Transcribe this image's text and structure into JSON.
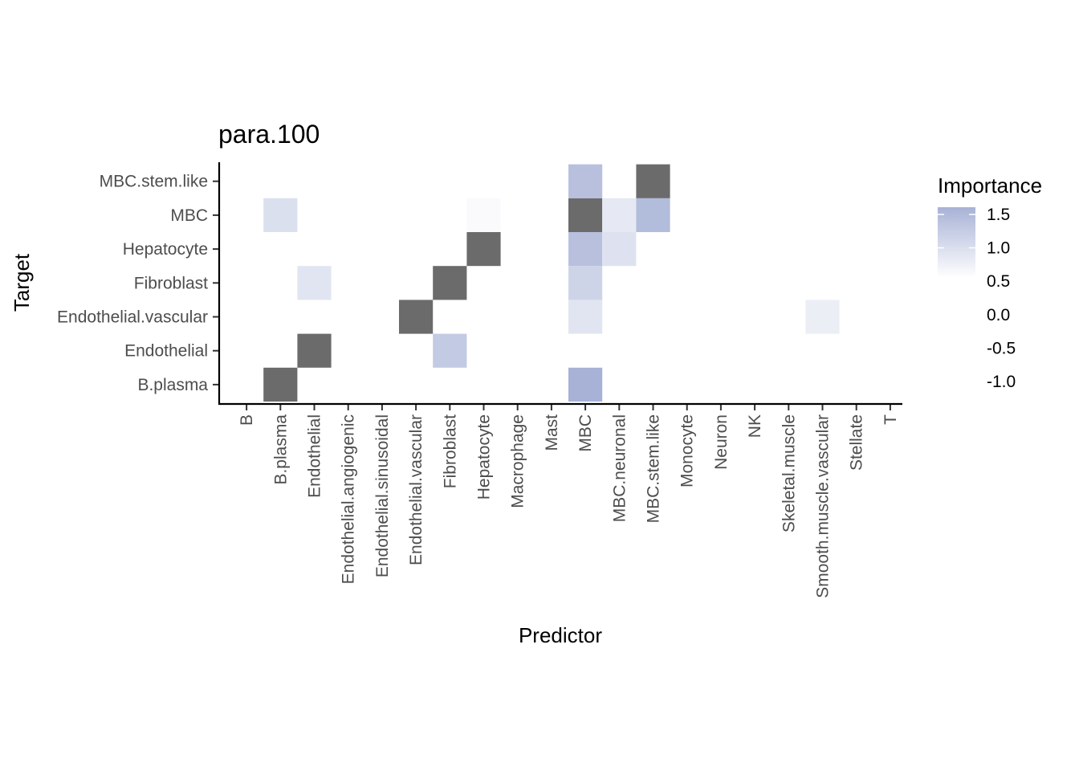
{
  "chart_data": {
    "type": "heatmap",
    "title": "para.100",
    "xlabel": "Predictor",
    "ylabel": "Target",
    "x_categories": [
      "B",
      "B.plasma",
      "Endothelial",
      "Endothelial.angiogenic",
      "Endothelial.sinusoidal",
      "Endothelial.vascular",
      "Fibroblast",
      "Hepatocyte",
      "Macrophage",
      "Mast",
      "MBC",
      "MBC.neuronal",
      "MBC.stem.like",
      "Monocyte",
      "Neuron",
      "NK",
      "Skeletal.muscle",
      "Smooth.muscle.vascular",
      "Stellate",
      "T"
    ],
    "y_categories": [
      "B.plasma",
      "Endothelial",
      "Endothelial.vascular",
      "Fibroblast",
      "Hepatocyte",
      "MBC",
      "MBC.stem.like"
    ],
    "cells": [
      {
        "x": "B.plasma",
        "y": "B.plasma",
        "value": null
      },
      {
        "x": "MBC",
        "y": "B.plasma",
        "value": 1.6
      },
      {
        "x": "Endothelial",
        "y": "Endothelial",
        "value": null
      },
      {
        "x": "Fibroblast",
        "y": "Endothelial",
        "value": 1.1
      },
      {
        "x": "Endothelial.vascular",
        "y": "Endothelial.vascular",
        "value": null
      },
      {
        "x": "MBC",
        "y": "Endothelial.vascular",
        "value": 0.55
      },
      {
        "x": "Smooth.muscle.vascular",
        "y": "Endothelial.vascular",
        "value": 0.35
      },
      {
        "x": "Endothelial",
        "y": "Fibroblast",
        "value": 0.55
      },
      {
        "x": "Fibroblast",
        "y": "Fibroblast",
        "value": null
      },
      {
        "x": "MBC",
        "y": "Fibroblast",
        "value": 0.9
      },
      {
        "x": "Hepatocyte",
        "y": "Hepatocyte",
        "value": null
      },
      {
        "x": "MBC",
        "y": "Hepatocyte",
        "value": 1.3
      },
      {
        "x": "MBC.neuronal",
        "y": "Hepatocyte",
        "value": 0.6
      },
      {
        "x": "B.plasma",
        "y": "MBC",
        "value": 0.65
      },
      {
        "x": "Hepatocyte",
        "y": "MBC",
        "value": 0.1
      },
      {
        "x": "MBC",
        "y": "MBC",
        "value": null
      },
      {
        "x": "MBC.neuronal",
        "y": "MBC",
        "value": 0.45
      },
      {
        "x": "MBC.stem.like",
        "y": "MBC",
        "value": 1.4
      },
      {
        "x": "MBC",
        "y": "MBC.stem.like",
        "value": 1.3
      },
      {
        "x": "MBC.stem.like",
        "y": "MBC.stem.like",
        "value": null
      }
    ],
    "na_color": "#6b6b6b",
    "color_scale": {
      "low_color": "#ffffff",
      "high_color": "#a7b2d6",
      "range": [
        0,
        1.6
      ]
    },
    "legend": {
      "title": "Importance",
      "position": "right",
      "labels": [
        "1.5",
        "1.0",
        "0.5",
        "0.0",
        "-0.5",
        "-1.0"
      ]
    },
    "grid": false
  }
}
